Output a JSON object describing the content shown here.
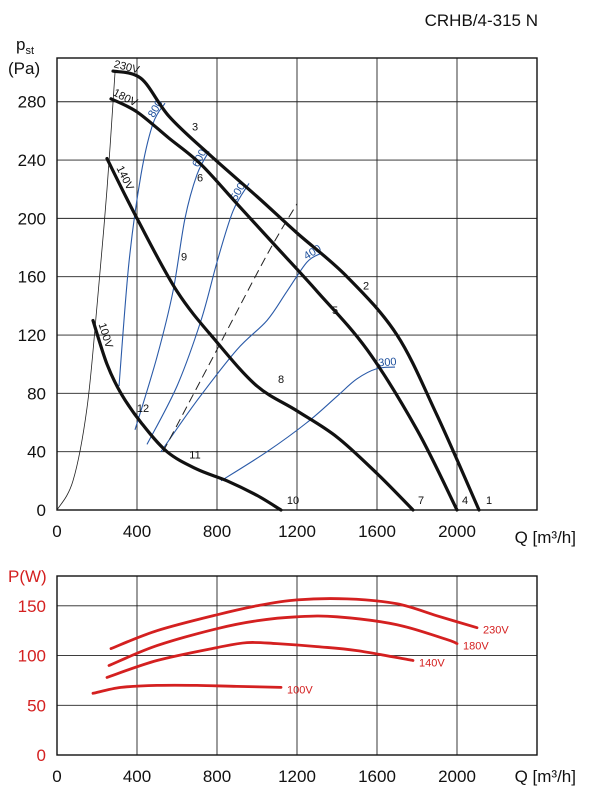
{
  "title": "CRHB/4-315 N",
  "chart_data": [
    {
      "type": "line",
      "ylabel_main": "p",
      "ylabel_sub": "st",
      "ylabel_unit": "(Pa)",
      "xlabel": "Q [m³/h]",
      "xlim": [
        0,
        2400
      ],
      "ylim": [
        0,
        310
      ],
      "x_ticks": [
        0,
        400,
        800,
        1200,
        1600,
        2000
      ],
      "y_ticks": [
        0,
        40,
        80,
        120,
        160,
        200,
        240,
        280
      ],
      "grid": true,
      "curves": [
        {
          "name": "230V",
          "points": [
            [
              280,
              301
            ],
            [
              420,
              296
            ],
            [
              560,
              270
            ],
            [
              760,
              244
            ],
            [
              1000,
              215
            ],
            [
              1200,
              190
            ],
            [
              1450,
              160
            ],
            [
              1700,
              120
            ],
            [
              1900,
              65
            ],
            [
              2110,
              0
            ]
          ]
        },
        {
          "name": "180V",
          "points": [
            [
              270,
              282
            ],
            [
              400,
              273
            ],
            [
              560,
              255
            ],
            [
              720,
              237
            ],
            [
              900,
              210
            ],
            [
              1100,
              180
            ],
            [
              1300,
              150
            ],
            [
              1550,
              110
            ],
            [
              1800,
              55
            ],
            [
              2000,
              0
            ]
          ]
        },
        {
          "name": "140V",
          "points": [
            [
              250,
              241
            ],
            [
              400,
              200
            ],
            [
              600,
              150
            ],
            [
              800,
              115
            ],
            [
              1000,
              85
            ],
            [
              1200,
              68
            ],
            [
              1400,
              50
            ],
            [
              1600,
              25
            ],
            [
              1780,
              0
            ]
          ]
        },
        {
          "name": "100V",
          "points": [
            [
              180,
              130
            ],
            [
              250,
              100
            ],
            [
              320,
              80
            ],
            [
              420,
              60
            ],
            [
              550,
              40
            ],
            [
              700,
              28
            ],
            [
              850,
              20
            ],
            [
              1000,
              10
            ],
            [
              1120,
              0
            ]
          ]
        }
      ],
      "system_curves": [
        {
          "name": "800",
          "points": [
            [
              310,
              85
            ],
            [
              360,
              170
            ],
            [
              420,
              230
            ],
            [
              480,
              265
            ],
            [
              540,
              279
            ]
          ]
        },
        {
          "name": "600",
          "points": [
            [
              390,
              55
            ],
            [
              500,
              105
            ],
            [
              580,
              150
            ],
            [
              640,
              200
            ],
            [
              700,
              230
            ],
            [
              760,
              246
            ]
          ]
        },
        {
          "name": "500",
          "points": [
            [
              450,
              45
            ],
            [
              600,
              85
            ],
            [
              720,
              130
            ],
            [
              800,
              170
            ],
            [
              880,
              205
            ],
            [
              960,
              224
            ]
          ]
        },
        {
          "name": "400",
          "points": [
            [
              520,
              40
            ],
            [
              700,
              75
            ],
            [
              900,
              110
            ],
            [
              1050,
              130
            ],
            [
              1150,
              150
            ],
            [
              1250,
              170
            ],
            [
              1320,
              176
            ]
          ]
        },
        {
          "name": "300",
          "points": [
            [
              820,
              20
            ],
            [
              1050,
              40
            ],
            [
              1250,
              60
            ],
            [
              1400,
              78
            ],
            [
              1500,
              90
            ],
            [
              1600,
              97
            ],
            [
              1690,
              98
            ]
          ]
        },
        {
          "name": "",
          "points": [
            [
              0,
              0
            ],
            [
              80,
              20
            ],
            [
              150,
              70
            ],
            [
              200,
              140
            ],
            [
              250,
              220
            ],
            [
              290,
              300
            ]
          ]
        }
      ],
      "dashed_line": [
        [
          530,
          40
        ],
        [
          800,
          110
        ],
        [
          1050,
          175
        ],
        [
          1200,
          210
        ]
      ],
      "point_labels": [
        {
          "text": "1",
          "x": 2160,
          "y": 7
        },
        {
          "text": "2",
          "x": 1545,
          "y": 154
        },
        {
          "text": "3",
          "x": 690,
          "y": 263
        },
        {
          "text": "4",
          "x": 2040,
          "y": 7
        },
        {
          "text": "5",
          "x": 1390,
          "y": 137
        },
        {
          "text": "6",
          "x": 715,
          "y": 228
        },
        {
          "text": "7",
          "x": 1820,
          "y": 7
        },
        {
          "text": "8",
          "x": 1120,
          "y": 90
        },
        {
          "text": "9",
          "x": 635,
          "y": 174
        },
        {
          "text": "10",
          "x": 1180,
          "y": 7
        },
        {
          "text": "11",
          "x": 690,
          "y": 38
        },
        {
          "text": "12",
          "x": 430,
          "y": 70
        }
      ]
    },
    {
      "type": "line",
      "ylabel": "P(W)",
      "xlabel": "Q [m³/h]",
      "xlim": [
        0,
        2400
      ],
      "ylim": [
        0,
        180
      ],
      "x_ticks": [
        0,
        400,
        800,
        1200,
        1600,
        2000
      ],
      "y_ticks": [
        0,
        50,
        100,
        150
      ],
      "grid": true,
      "series": [
        {
          "name": "230V",
          "points": [
            [
              270,
              107
            ],
            [
              500,
              125
            ],
            [
              800,
              141
            ],
            [
              1000,
              150
            ],
            [
              1200,
              156
            ],
            [
              1450,
              157
            ],
            [
              1700,
              152
            ],
            [
              1900,
              140
            ],
            [
              2100,
              128
            ]
          ]
        },
        {
          "name": "180V",
          "points": [
            [
              260,
              90
            ],
            [
              500,
              110
            ],
            [
              800,
              127
            ],
            [
              1000,
              135
            ],
            [
              1200,
              139
            ],
            [
              1400,
              139
            ],
            [
              1700,
              131
            ],
            [
              1950,
              116
            ],
            [
              2000,
              112
            ]
          ]
        },
        {
          "name": "140V",
          "points": [
            [
              250,
              78
            ],
            [
              500,
              95
            ],
            [
              800,
              108
            ],
            [
              950,
              113
            ],
            [
              1100,
              112
            ],
            [
              1300,
              109
            ],
            [
              1500,
              105
            ],
            [
              1780,
              95
            ]
          ]
        },
        {
          "name": "100V",
          "points": [
            [
              180,
              62
            ],
            [
              320,
              68
            ],
            [
              500,
              70
            ],
            [
              700,
              70
            ],
            [
              900,
              69
            ],
            [
              1120,
              68
            ]
          ]
        }
      ]
    }
  ]
}
